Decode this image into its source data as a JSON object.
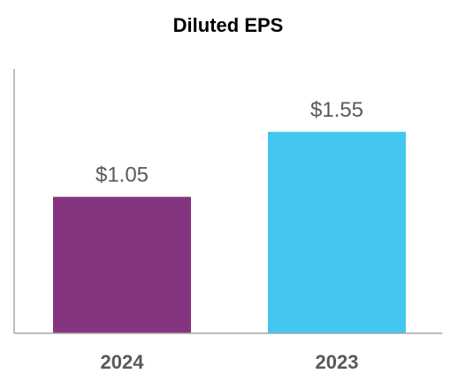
{
  "chart_data": {
    "type": "bar",
    "title": "Diluted EPS",
    "categories": [
      "2024",
      "2023"
    ],
    "values": [
      1.05,
      1.55
    ],
    "value_labels": [
      "$1.05",
      "$1.55"
    ],
    "colors": [
      "#85357F",
      "#43C6F0"
    ],
    "ylim": [
      0,
      2.0
    ],
    "grid": false,
    "xlabel": "",
    "ylabel": ""
  }
}
